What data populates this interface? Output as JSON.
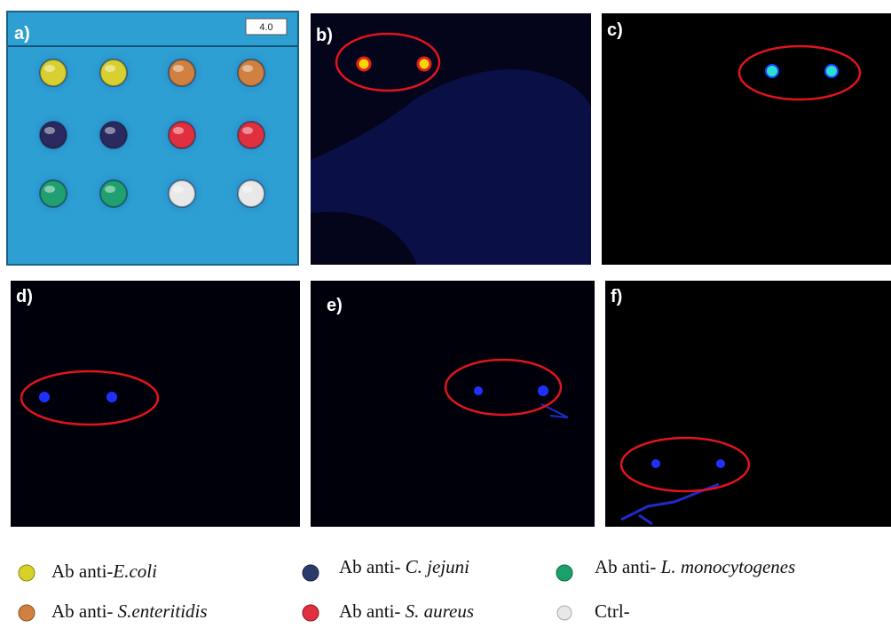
{
  "panels": [
    {
      "label": "a)",
      "scale_value": "4.0"
    },
    {
      "label": "b)"
    },
    {
      "label": "c)"
    },
    {
      "label": "d)"
    },
    {
      "label": "e)"
    },
    {
      "label": "f)"
    }
  ],
  "legend": [
    {
      "prefix": "Ab anti-",
      "name": "E.coli"
    },
    {
      "prefix": "Ab anti-",
      "name": "C. jejuni"
    },
    {
      "prefix": "Ab anti-",
      "name": "L. monocytogenes"
    },
    {
      "prefix": "Ab anti-",
      "name": "S.enteritidis"
    },
    {
      "prefix": "Ab anti-",
      "name": "S. aureus"
    },
    {
      "prefix": "Ctrl-"
    }
  ]
}
